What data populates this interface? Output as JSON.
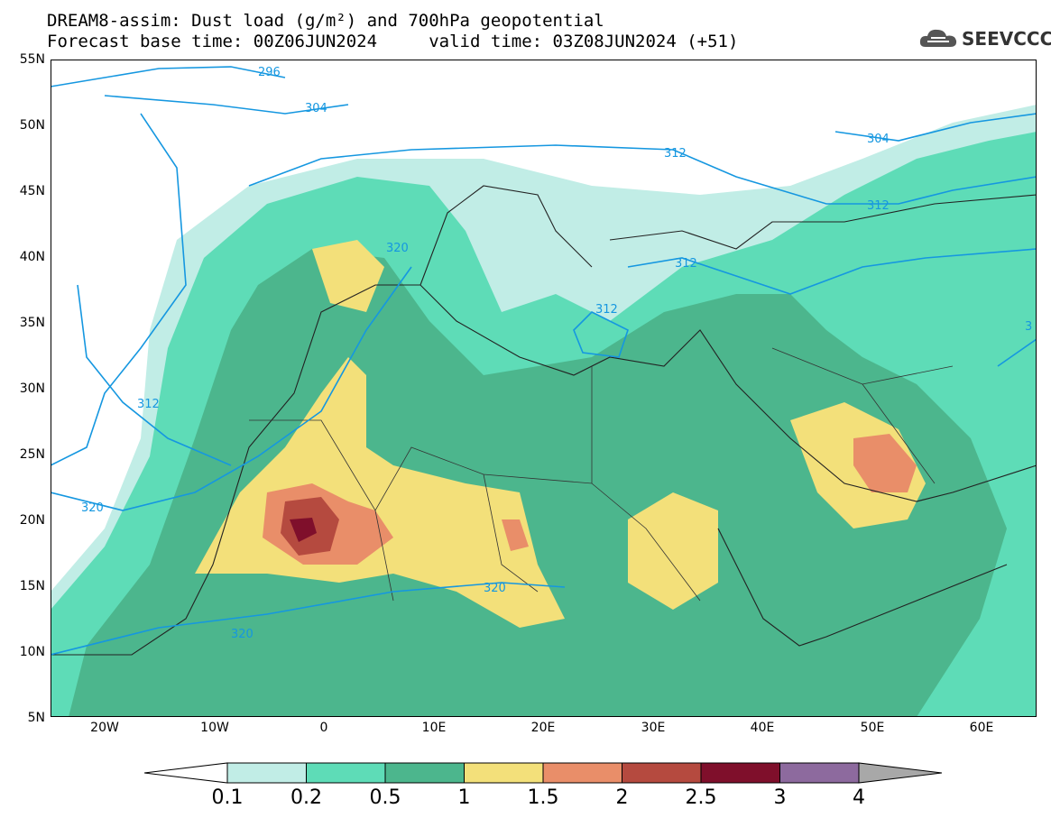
{
  "header": {
    "line1": "DREAM8-assim: Dust load (g/m²) and 700hPa geopotential",
    "line2": "Forecast base time: 00Z06JUN2024     valid time: 03Z08JUN2024 (+51)"
  },
  "logo": {
    "text": "SEEVCCC",
    "icon": "cloud-icon"
  },
  "axes": {
    "lat_labels": [
      "55N",
      "50N",
      "45N",
      "40N",
      "35N",
      "30N",
      "25N",
      "20N",
      "15N",
      "10N",
      "5N"
    ],
    "lon_labels": [
      "20W",
      "10W",
      "0",
      "10E",
      "20E",
      "30E",
      "40E",
      "50E",
      "60E"
    ]
  },
  "contours": [
    "296",
    "304",
    "312",
    "312",
    "312",
    "312",
    "312",
    "304",
    "320",
    "320",
    "320",
    "320",
    "3"
  ],
  "colorbar": {
    "labels": [
      "0.1",
      "0.2",
      "0.5",
      "1",
      "1.5",
      "2",
      "2.5",
      "3",
      "4"
    ],
    "colors": [
      "#c1ede6",
      "#5edcb7",
      "#4cb68d",
      "#f3e07a",
      "#e98e69",
      "#b54a3f",
      "#7f0f2b",
      "#8d6a9e"
    ],
    "under_color": "#ffffff",
    "over_color": "#a8a8a8"
  },
  "map_colors": {
    "background": "#ffffff",
    "contour_line": "#1597e0",
    "border_line": "#222222"
  }
}
